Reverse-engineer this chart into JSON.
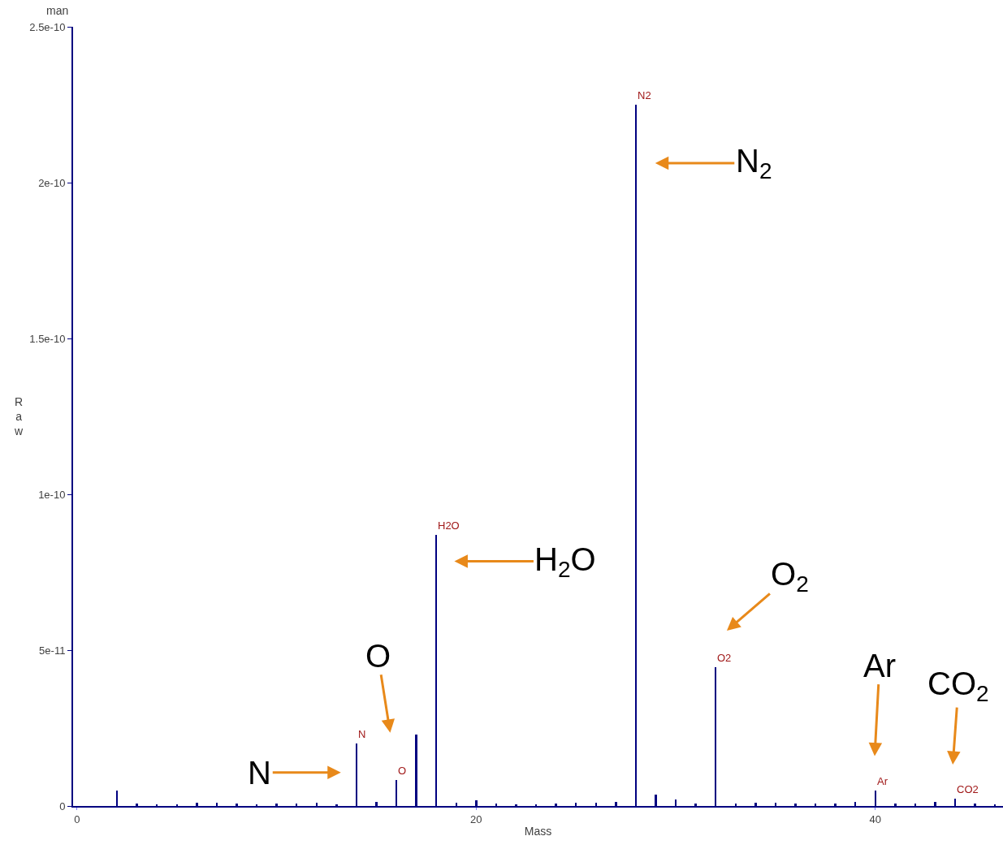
{
  "chart_data": {
    "type": "bar",
    "xlabel": "Mass",
    "ylabel": "Raw",
    "color": "#000080",
    "grid": false,
    "x": [
      2,
      3,
      4,
      5,
      6,
      7,
      8,
      9,
      10,
      11,
      12,
      13,
      14,
      15,
      16,
      17,
      18,
      19,
      20,
      21,
      22,
      23,
      24,
      25,
      26,
      27,
      28,
      29,
      30,
      31,
      32,
      33,
      34,
      35,
      36,
      37,
      38,
      39,
      40,
      41,
      42,
      43,
      44,
      45,
      46
    ],
    "values": [
      5e-12,
      8e-13,
      5e-13,
      5e-13,
      1e-12,
      1e-12,
      8e-13,
      5e-13,
      8e-13,
      8e-13,
      1e-12,
      5e-13,
      2e-11,
      1.3e-12,
      8.3e-12,
      2.3e-11,
      8.7e-11,
      1e-12,
      1.8e-12,
      8e-13,
      5e-13,
      5e-13,
      8e-13,
      1e-12,
      1e-12,
      1.3e-12,
      2.25e-10,
      3.6e-12,
      2.1e-12,
      8e-13,
      4.45e-11,
      8e-13,
      1e-12,
      1e-12,
      8e-13,
      8e-13,
      8e-13,
      1.3e-12,
      4.9e-12,
      8e-13,
      8e-13,
      1.3e-12,
      2.3e-12,
      8e-13,
      5e-13
    ],
    "xlim": [
      -0.2,
      46.4
    ],
    "xticks": [
      0,
      20,
      40
    ],
    "ylim": [
      0,
      2.5e-10
    ],
    "yticks": [
      0,
      {
        "value": 5e-11,
        "label": "5e-11"
      },
      {
        "value": 1e-10,
        "label": "1e-10"
      },
      {
        "value": 1.5e-10,
        "label": "1.5e-10"
      },
      {
        "value": 2e-10,
        "label": "2e-10"
      },
      {
        "value": 2.5e-10,
        "label": "2.5e-10"
      }
    ],
    "annotations": [
      "man",
      {
        "text": "N",
        "x": 14,
        "y": 2e-11
      },
      {
        "text": "O",
        "x": 16,
        "y": 8.3e-12
      },
      {
        "text": "H2O",
        "x": 18,
        "y": 8.7e-11
      },
      {
        "text": "N2",
        "x": 28,
        "y": 2.25e-10
      },
      {
        "text": "O2",
        "x": 32,
        "y": 4.45e-11
      },
      {
        "text": "Ar",
        "x": 40,
        "y": 4.9e-12
      },
      {
        "text": "CO2",
        "x": 44,
        "y": 2.3e-12
      },
      "N",
      "O",
      "H$_{2}$O",
      "N$_{2}$",
      "O$_{2}$",
      "Ar",
      "CO$_{2}$"
    ]
  }
}
